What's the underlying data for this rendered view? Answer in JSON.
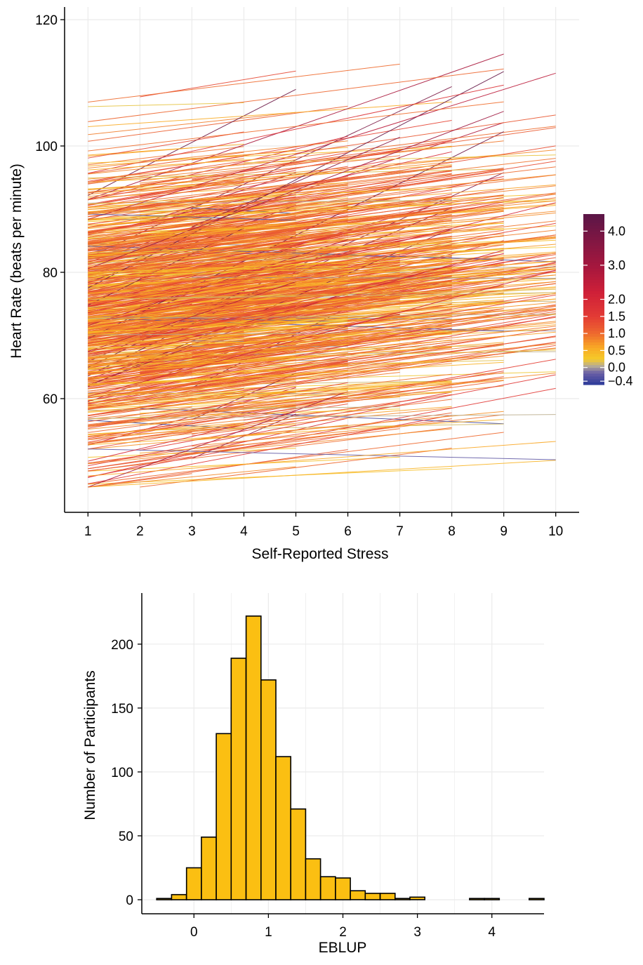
{
  "colors": {
    "grid": "#ebebeb",
    "axis": "#000000",
    "bar_fill": "#fbbf12",
    "bar_stroke": "#000000"
  },
  "chart_data": [
    {
      "type": "line",
      "description_visible": "spaghetti plot of per-participant regression lines of heart rate on self-reported stress, colored by EBLUP slope",
      "xlabel": "Self-Reported Stress",
      "ylabel": "Heart Rate (beats per minute)",
      "xlim": [
        0.55,
        10.45
      ],
      "ylim": [
        42,
        122
      ],
      "x_ticks": [
        1,
        2,
        3,
        4,
        5,
        6,
        7,
        8,
        9,
        10
      ],
      "y_ticks": [
        60,
        80,
        100,
        120
      ],
      "grid": true,
      "legend": {
        "type": "colorbar",
        "position": "right",
        "range": [
          -0.5,
          4.5
        ],
        "tick_values": [
          4.0,
          3.0,
          2.0,
          1.5,
          1.0,
          0.5,
          0.0,
          -0.4
        ],
        "tick_labels": [
          "4.0",
          "3.0",
          "2.0",
          "1.5",
          "1.0",
          "0.5",
          "0.0",
          "−0.4"
        ],
        "color_stops": [
          [
            -0.5,
            "#2b3a99"
          ],
          [
            -0.15,
            "#6a5fa6"
          ],
          [
            0.05,
            "#b5ab97"
          ],
          [
            0.25,
            "#f5cb2a"
          ],
          [
            0.6,
            "#f9a825"
          ],
          [
            1.0,
            "#ee6a2e"
          ],
          [
            1.5,
            "#e33b35"
          ],
          [
            2.2,
            "#cf2038"
          ],
          [
            3.0,
            "#a4173e"
          ],
          [
            4.5,
            "#5b1647"
          ]
        ]
      },
      "series_count_estimate": 1000
    },
    {
      "type": "bar",
      "chart_kind": "histogram",
      "xlabel": "EBLUP",
      "ylabel": "Number of Participants",
      "xlim": [
        -0.7,
        4.7
      ],
      "ylim": [
        -11,
        240
      ],
      "x_ticks": [
        0,
        1,
        2,
        3,
        4
      ],
      "y_ticks": [
        0,
        50,
        100,
        150,
        200
      ],
      "grid": true,
      "bin_width": 0.2,
      "bin_start": -0.5,
      "counts": [
        1,
        4,
        25,
        49,
        130,
        189,
        222,
        172,
        112,
        71,
        32,
        18,
        17,
        7,
        5,
        5,
        1,
        2,
        0,
        0,
        0,
        1,
        1,
        0,
        0,
        1
      ]
    }
  ]
}
